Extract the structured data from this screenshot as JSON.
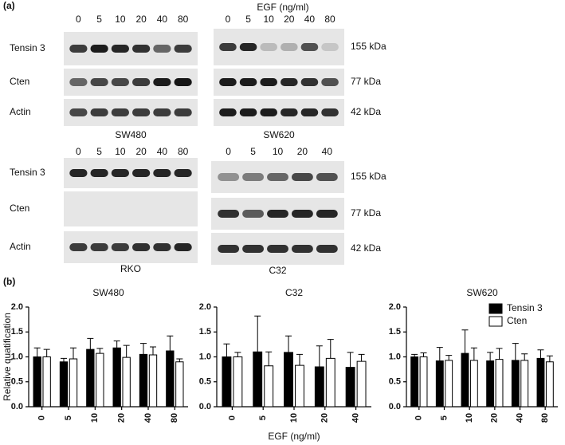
{
  "figure": {
    "panel_a_label": "(a)",
    "panel_b_label": "(b)",
    "treatment_label": "EGF (ng/ml)",
    "blots": [
      {
        "cell_line": "SW480",
        "doses": [
          "0",
          "5",
          "10",
          "20",
          "40",
          "80"
        ],
        "row_labels": [
          "Tensin 3",
          "Cten",
          "Actin"
        ]
      },
      {
        "cell_line": "SW620",
        "doses": [
          "0",
          "5",
          "10",
          "20",
          "40",
          "80"
        ],
        "size_labels": [
          "155 kDa",
          "77 kDa",
          "42 kDa"
        ]
      },
      {
        "cell_line": "RKO",
        "doses": [
          "0",
          "5",
          "10",
          "20",
          "40",
          "80"
        ],
        "row_labels": [
          "Tensin 3",
          "Cten",
          "Actin"
        ]
      },
      {
        "cell_line": "C32",
        "doses": [
          "0",
          "5",
          "10",
          "20",
          "40"
        ],
        "size_labels": [
          "155 kDa",
          "77 kDa",
          "42 kDa"
        ]
      }
    ]
  },
  "chart_data": [
    {
      "type": "bar",
      "title": "SW480",
      "ylabel": "Relative quatification",
      "categories": [
        "0",
        "5",
        "10",
        "20",
        "40",
        "80"
      ],
      "series": [
        {
          "color": "#000000",
          "values": [
            1.0,
            0.9,
            1.15,
            1.18,
            1.05,
            1.12
          ],
          "errors": [
            0.18,
            0.07,
            0.22,
            0.14,
            0.22,
            0.3
          ]
        },
        {
          "color": "#ffffff",
          "values": [
            1.0,
            0.96,
            1.07,
            0.99,
            1.04,
            0.9
          ],
          "errors": [
            0.15,
            0.22,
            0.1,
            0.24,
            0.16,
            0.06
          ]
        }
      ],
      "ylim": [
        0,
        2.0
      ],
      "yticks": [
        {
          "value": 0,
          "label": "0.0"
        },
        {
          "value": 0.5,
          "label": "0.5"
        },
        {
          "value": 1.0,
          "label": "1.0"
        },
        {
          "value": 1.5,
          "label": "1.5"
        },
        {
          "value": 2.0,
          "label": "2.0"
        }
      ]
    },
    {
      "type": "bar",
      "title": "C32",
      "xlabel": "EGF (ng/ml)",
      "categories": [
        "0",
        "5",
        "10",
        "20",
        "40"
      ],
      "series": [
        {
          "color": "#000000",
          "values": [
            1.0,
            1.1,
            1.09,
            0.8,
            0.79
          ],
          "errors": [
            0.26,
            0.72,
            0.33,
            0.42,
            0.3
          ]
        },
        {
          "color": "#ffffff",
          "values": [
            1.0,
            0.82,
            0.83,
            0.97,
            0.91
          ],
          "errors": [
            0.09,
            0.28,
            0.22,
            0.38,
            0.14
          ]
        }
      ],
      "ylim": [
        0,
        2.0
      ],
      "yticks": [
        {
          "value": 0,
          "label": "0.0"
        },
        {
          "value": 0.5,
          "label": "0.5"
        },
        {
          "value": 1.0,
          "label": "1.0"
        },
        {
          "value": 1.5,
          "label": "1.5"
        },
        {
          "value": 2.0,
          "label": "2.0"
        }
      ]
    },
    {
      "type": "bar",
      "title": "SW620",
      "legend": "top-right",
      "categories": [
        "0",
        "5",
        "10",
        "20",
        "40",
        "80"
      ],
      "series": [
        {
          "name": "Tensin 3",
          "color": "#000000",
          "values": [
            1.0,
            0.92,
            1.07,
            0.92,
            0.93,
            0.97
          ],
          "errors": [
            0.05,
            0.27,
            0.47,
            0.17,
            0.34,
            0.17
          ]
        },
        {
          "name": "Cten",
          "color": "#ffffff",
          "values": [
            1.0,
            0.93,
            0.93,
            0.95,
            0.93,
            0.9
          ],
          "errors": [
            0.08,
            0.1,
            0.25,
            0.22,
            0.13,
            0.12
          ]
        }
      ],
      "ylim": [
        0,
        2.0
      ],
      "yticks": [
        {
          "value": 0,
          "label": "0.0"
        },
        {
          "value": 0.5,
          "label": "0.5"
        },
        {
          "value": 1.0,
          "label": "1.0"
        },
        {
          "value": 1.5,
          "label": "1.5"
        },
        {
          "value": 2.0,
          "label": "2.0"
        }
      ]
    }
  ]
}
